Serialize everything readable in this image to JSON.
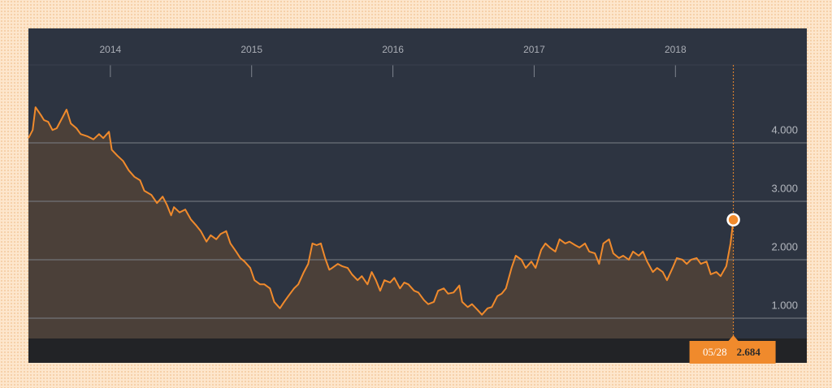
{
  "chart_data": {
    "type": "line",
    "x": [
      2013.42,
      2013.45,
      2013.47,
      2013.51,
      2013.53,
      2013.56,
      2013.59,
      2013.62,
      2013.66,
      2013.69,
      2013.72,
      2013.76,
      2013.79,
      2013.84,
      2013.88,
      2013.92,
      2013.95,
      2013.99,
      2014.01,
      2014.05,
      2014.09,
      2014.13,
      2014.17,
      2014.21,
      2014.24,
      2014.29,
      2014.33,
      2014.37,
      2014.4,
      2014.43,
      2014.45,
      2014.49,
      2014.53,
      2014.57,
      2014.61,
      2014.64,
      2014.68,
      2014.71,
      2014.75,
      2014.78,
      2014.82,
      2014.85,
      2014.89,
      2014.92,
      2014.95,
      2014.99,
      2015.02,
      2015.06,
      2015.09,
      2015.13,
      2015.16,
      2015.2,
      2015.23,
      2015.26,
      2015.3,
      2015.33,
      2015.37,
      2015.4,
      2015.43,
      2015.46,
      2015.49,
      2015.52,
      2015.55,
      2015.57,
      2015.61,
      2015.64,
      2015.68,
      2015.71,
      2015.75,
      2015.78,
      2015.82,
      2015.85,
      2015.88,
      2015.91,
      2015.94,
      2015.98,
      2016.01,
      2016.05,
      2016.08,
      2016.11,
      2016.15,
      2016.18,
      2016.22,
      2016.25,
      2016.29,
      2016.32,
      2016.36,
      2016.39,
      2016.43,
      2016.47,
      2016.49,
      2016.53,
      2016.56,
      2016.6,
      2016.63,
      2016.67,
      2016.7,
      2016.74,
      2016.77,
      2016.8,
      2016.84,
      2016.87,
      2016.91,
      2016.94,
      2016.98,
      2017.01,
      2017.05,
      2017.08,
      2017.11,
      2017.15,
      2017.18,
      2017.22,
      2017.25,
      2017.29,
      2017.32,
      2017.36,
      2017.39,
      2017.43,
      2017.46,
      2017.49,
      2017.53,
      2017.56,
      2017.6,
      2017.63,
      2017.67,
      2017.7,
      2017.74,
      2017.77,
      2017.8,
      2017.84,
      2017.87,
      2017.91,
      2017.94,
      2017.98,
      2018.01,
      2018.05,
      2018.08,
      2018.11,
      2018.15,
      2018.18,
      2018.22,
      2018.25,
      2018.29,
      2018.32,
      2018.36,
      2018.39,
      2018.41
    ],
    "values": [
      4.08,
      4.22,
      4.61,
      4.47,
      4.39,
      4.36,
      4.22,
      4.25,
      4.43,
      4.57,
      4.33,
      4.25,
      4.15,
      4.11,
      4.06,
      4.15,
      4.08,
      4.19,
      3.88,
      3.78,
      3.69,
      3.53,
      3.42,
      3.36,
      3.18,
      3.11,
      2.97,
      3.08,
      2.94,
      2.76,
      2.9,
      2.81,
      2.86,
      2.69,
      2.58,
      2.49,
      2.31,
      2.42,
      2.35,
      2.44,
      2.49,
      2.28,
      2.14,
      2.03,
      1.97,
      1.86,
      1.65,
      1.58,
      1.58,
      1.51,
      1.28,
      1.17,
      1.28,
      1.38,
      1.51,
      1.58,
      1.79,
      1.93,
      2.28,
      2.25,
      2.28,
      2.03,
      1.83,
      1.86,
      1.93,
      1.89,
      1.86,
      1.75,
      1.65,
      1.72,
      1.58,
      1.79,
      1.65,
      1.47,
      1.65,
      1.61,
      1.69,
      1.51,
      1.61,
      1.58,
      1.47,
      1.44,
      1.31,
      1.24,
      1.28,
      1.47,
      1.51,
      1.42,
      1.44,
      1.56,
      1.28,
      1.19,
      1.24,
      1.14,
      1.06,
      1.17,
      1.19,
      1.38,
      1.42,
      1.51,
      1.86,
      2.07,
      2.0,
      1.86,
      1.97,
      1.86,
      2.17,
      2.28,
      2.21,
      2.14,
      2.35,
      2.28,
      2.31,
      2.25,
      2.21,
      2.28,
      2.14,
      2.11,
      1.93,
      2.28,
      2.35,
      2.11,
      2.03,
      2.07,
      2.0,
      2.14,
      2.07,
      2.14,
      1.97,
      1.79,
      1.86,
      1.79,
      1.65,
      1.86,
      2.03,
      2.0,
      1.93,
      2.0,
      2.03,
      1.93,
      1.97,
      1.75,
      1.79,
      1.72,
      1.89,
      2.28,
      2.684
    ],
    "color": "#f08a2c",
    "area": true,
    "marker_label": "05/28",
    "xlim": [
      2013.42,
      2018.93
    ],
    "ylim": [
      0.653,
      5.125
    ],
    "xticks": [
      2014,
      2015,
      2016,
      2017,
      2018
    ],
    "yticks": [
      {
        "value": 1,
        "label": "1.000"
      },
      {
        "value": 2,
        "label": "2.000"
      },
      {
        "value": 3,
        "label": "3.000"
      },
      {
        "value": 4,
        "label": "4.000"
      }
    ],
    "grid": true
  }
}
